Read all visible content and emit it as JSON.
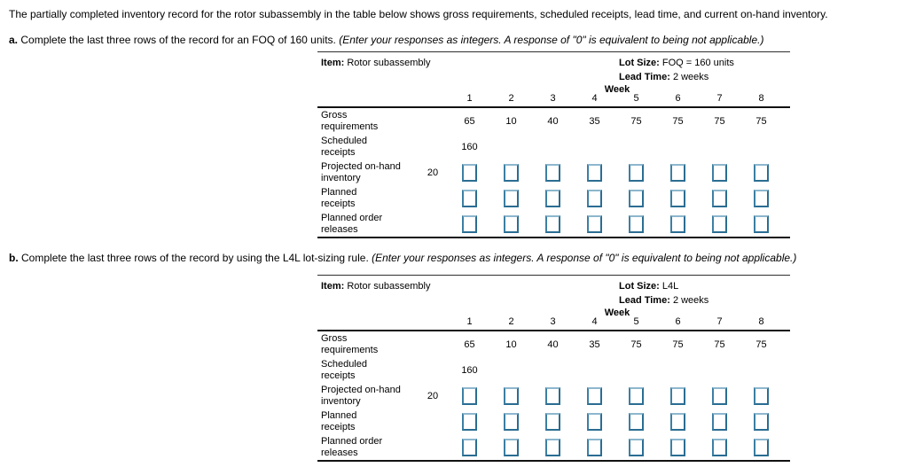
{
  "intro": "The partially completed inventory record for the rotor subassembly in the table below shows gross requirements, scheduled receipts, lead time, and current on-hand inventory.",
  "part_a": {
    "label": "a.",
    "text": "Complete the last three rows of the record for an FOQ of 160 units.",
    "note": "(Enter your responses as integers. A response of \"0\" is equivalent to being not applicable.)"
  },
  "part_b": {
    "label": "b.",
    "text": "Complete the last three rows of the record by using the L4L lot-sizing rule.",
    "note": "(Enter your responses as integers. A response of \"0\" is equivalent to being not applicable.)"
  },
  "tables": [
    {
      "item_label": "Item:",
      "item_value": "Rotor subassembly",
      "lot_size_label": "Lot Size:",
      "lot_size_value": "FOQ = 160 units",
      "lead_time_label": "Lead Time:",
      "lead_time_value": "2 weeks",
      "week_label": "Week",
      "weeks": [
        "1",
        "2",
        "3",
        "4",
        "5",
        "6",
        "7",
        "8"
      ],
      "gross": {
        "l1": "Gross",
        "l2": "requirements",
        "values": [
          "65",
          "10",
          "40",
          "35",
          "75",
          "75",
          "75",
          "75"
        ]
      },
      "scheduled": {
        "l1": "Scheduled",
        "l2": "receipts",
        "values": [
          "160",
          "",
          "",
          "",
          "",
          "",
          "",
          ""
        ]
      },
      "projected": {
        "l1": "Projected on-hand",
        "l2": "inventory",
        "initial": "20"
      },
      "planned_receipts": {
        "l1": "Planned",
        "l2": "receipts"
      },
      "planned_releases": {
        "l1": "Planned order",
        "l2": "releases"
      }
    },
    {
      "item_label": "Item:",
      "item_value": "Rotor subassembly",
      "lot_size_label": "Lot Size:",
      "lot_size_value": "L4L",
      "lead_time_label": "Lead Time:",
      "lead_time_value": "2 weeks",
      "week_label": "Week",
      "weeks": [
        "1",
        "2",
        "3",
        "4",
        "5",
        "6",
        "7",
        "8"
      ],
      "gross": {
        "l1": "Gross",
        "l2": "requirements",
        "values": [
          "65",
          "10",
          "40",
          "35",
          "75",
          "75",
          "75",
          "75"
        ]
      },
      "scheduled": {
        "l1": "Scheduled",
        "l2": "receipts",
        "values": [
          "160",
          "",
          "",
          "",
          "",
          "",
          "",
          ""
        ]
      },
      "projected": {
        "l1": "Projected on-hand",
        "l2": "inventory",
        "initial": "20"
      },
      "planned_receipts": {
        "l1": "Planned",
        "l2": "receipts"
      },
      "planned_releases": {
        "l1": "Planned order",
        "l2": "releases"
      }
    }
  ],
  "colors": {
    "input_border": "#2b6d92",
    "input_border_light": "#8db7cd",
    "rule_line": "#111111"
  }
}
